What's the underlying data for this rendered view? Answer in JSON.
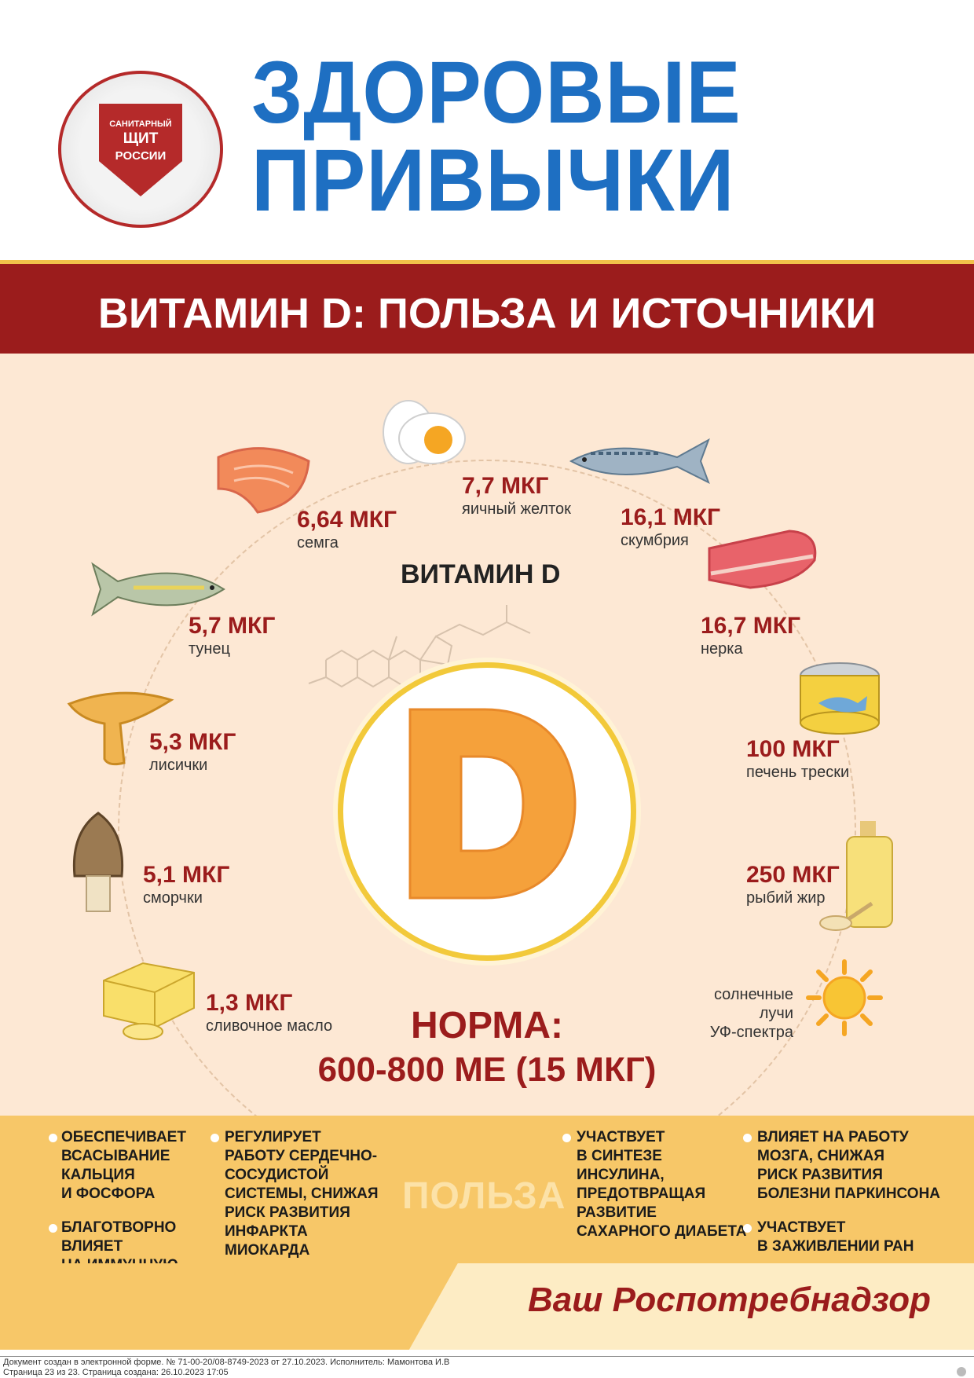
{
  "header": {
    "logo_line1": "САНИТАРНЫЙ",
    "logo_line2": "ЩИТ",
    "logo_line3": "РОССИИ",
    "title_line1": "ЗДОРОВЫЕ",
    "title_line2": "ПРИВЫЧКИ"
  },
  "banner": {
    "title": "ВИТАМИН D: ПОЛЬЗА И ИСТОЧНИКИ"
  },
  "center": {
    "heading": "ВИТАМИН D",
    "norma_label": "НОРМА:",
    "norma_value": "600-800 МЕ (15 МКГ)"
  },
  "sources": [
    {
      "value": "7,7 МКГ",
      "name": "яичный желток",
      "icon": "egg-icon"
    },
    {
      "value": "6,64 МКГ",
      "name": "семга",
      "icon": "salmon-steak-icon"
    },
    {
      "value": "16,1 МКГ",
      "name": "скумбрия",
      "icon": "mackerel-icon"
    },
    {
      "value": "5,7 МКГ",
      "name": "тунец",
      "icon": "tuna-icon"
    },
    {
      "value": "16,7 МКГ",
      "name": "нерка",
      "icon": "sockeye-icon"
    },
    {
      "value": "5,3 МКГ",
      "name": "лисички",
      "icon": "chanterelle-icon"
    },
    {
      "value": "100 МКГ",
      "name": "печень трески",
      "icon": "canned-liver-icon"
    },
    {
      "value": "5,1 МКГ",
      "name": "сморчки",
      "icon": "morel-icon"
    },
    {
      "value": "250 МКГ",
      "name": "рыбий жир",
      "icon": "fish-oil-icon"
    },
    {
      "value": "1,3 МКГ",
      "name": "сливочное масло",
      "icon": "butter-icon"
    }
  ],
  "sun": {
    "line1": "солнечные",
    "line2": "лучи",
    "line3": "УФ-спектра",
    "icon": "sun-icon"
  },
  "benefits": {
    "label": "ПОЛЬЗА",
    "items": [
      "ОБЕСПЕЧИВАЕТ\nВСАСЫВАНИЕ\nКАЛЬЦИЯ\nИ ФОСФОРА",
      "БЛАГОТВОРНО\nВЛИЯЕТ\nНА ИММУННУЮ\nСИСТЕМУ",
      "РЕГУЛИРУЕТ\nРАБОТУ СЕРДЕЧНО-\nСОСУДИСТОЙ\nСИСТЕМЫ, СНИЖАЯ\nРИСК РАЗВИТИЯ\nИНФАРКТА\nМИОКАРДА",
      "УЧАСТВУЕТ\nВ СИНТЕЗЕ\nИНСУЛИНА,\nПРЕДОТВРАЩАЯ\nРАЗВИТИЕ\nСАХАРНОГО ДИАБЕТА",
      "ВЛИЯЕТ НА РАБОТУ\nМОЗГА, СНИЖАЯ\nРИСК РАЗВИТИЯ\nБОЛЕЗНИ ПАРКИНСОНА",
      "УЧАСТВУЕТ\nВ ЗАЖИВЛЕНИИ РАН"
    ]
  },
  "footer": {
    "signature": "Ваш Роспотребнадзор",
    "doc_line1": "Документ создан в электронной форме. № 71-00-20/08-8749-2023 от 27.10.2023. Исполнитель: Мамонтова И.В",
    "doc_line2": "Страница 23 из 23. Страница создана: 26.10.2023 17:05"
  },
  "colors": {
    "title_blue": "#1e6fc2",
    "banner_red": "#9b1c1c",
    "background_peach": "#fde8d4",
    "benefit_yellow": "#f7c768",
    "d_orange": "#f5a13b"
  }
}
